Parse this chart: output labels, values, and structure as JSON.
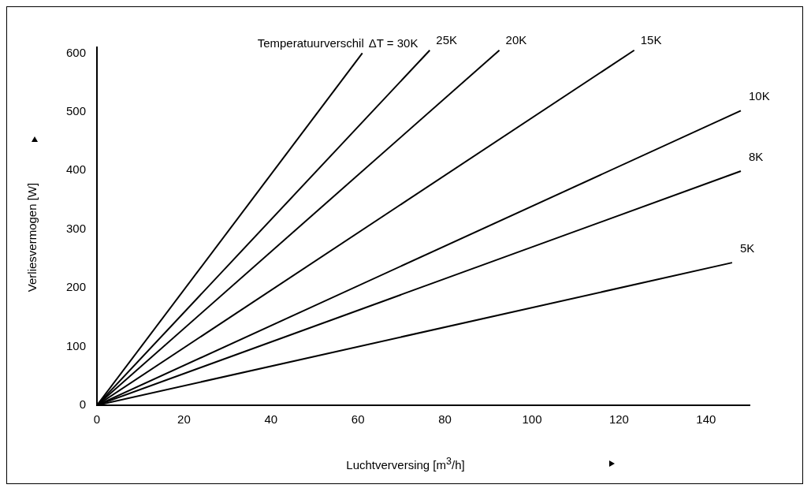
{
  "chart_data": {
    "type": "line",
    "xlabel": "Luchtverversing [m$^{3}$/h]",
    "ylabel": "Verliesvermogen  [W]",
    "annotations": [
      "Temperatuurverschil"
    ],
    "xlim": [
      0,
      150
    ],
    "ylim": [
      0,
      610
    ],
    "xticks": [
      0,
      20,
      40,
      60,
      80,
      100,
      120,
      140
    ],
    "yticks": [
      0,
      100,
      200,
      300,
      400,
      500,
      600
    ],
    "grid": false,
    "legend": false,
    "marker": "none",
    "line_style": "solid",
    "series": [
      {
        "name": "ΔT = 30K",
        "color": "#000000",
        "x": [
          0,
          61
        ],
        "values": [
          0,
          600
        ]
      },
      {
        "name": "25K",
        "color": "#000000",
        "x": [
          0,
          76.5
        ],
        "values": [
          0,
          605
        ]
      },
      {
        "name": "20K",
        "color": "#000000",
        "x": [
          0,
          92.5
        ],
        "values": [
          0,
          605
        ]
      },
      {
        "name": "15K",
        "color": "#000000",
        "x": [
          0,
          123.5
        ],
        "values": [
          0,
          605
        ]
      },
      {
        "name": "10K",
        "color": "#000000",
        "x": [
          0,
          148
        ],
        "values": [
          0,
          502
        ]
      },
      {
        "name": "8K",
        "color": "#000000",
        "x": [
          0,
          148
        ],
        "values": [
          0,
          399
        ]
      },
      {
        "name": "5K",
        "color": "#000000",
        "x": [
          0,
          146
        ],
        "values": [
          0,
          243
        ]
      }
    ]
  }
}
